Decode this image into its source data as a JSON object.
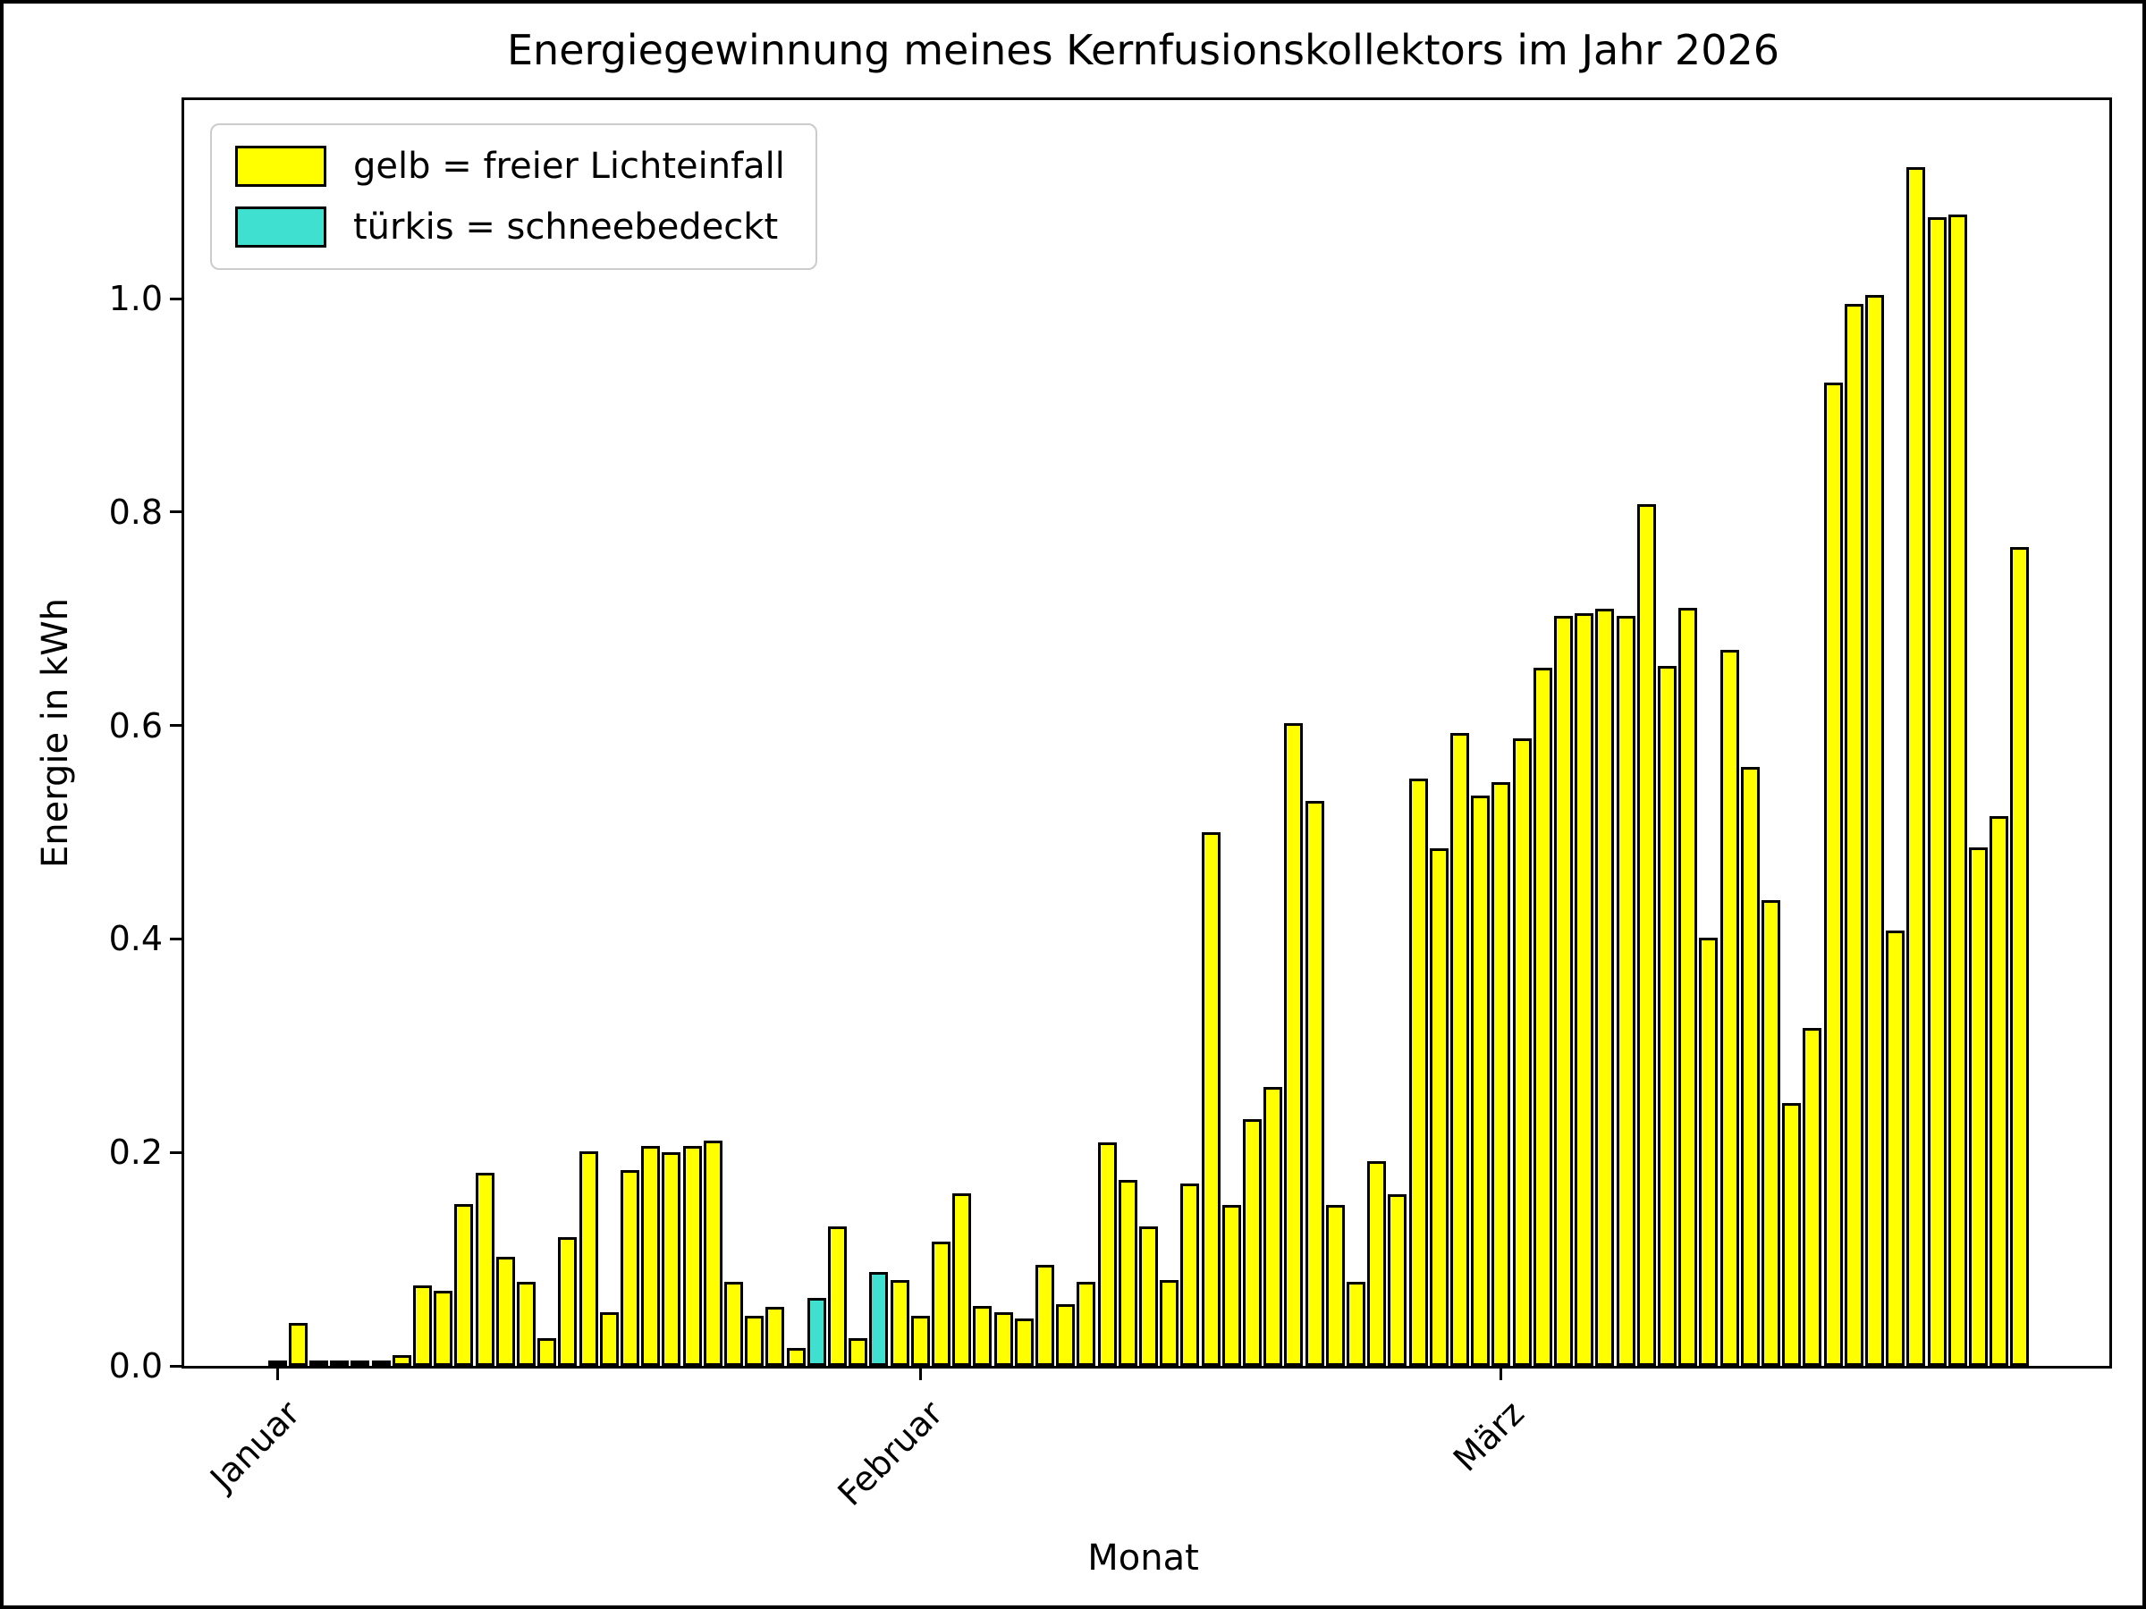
{
  "figure": {
    "title": "Energiegewinnung meines Kernfusionskollektors im Jahr 2026"
  },
  "chart_data": {
    "type": "bar",
    "title": "Energiegewinnung meines Kernfusionskollektors im Jahr 2026",
    "xlabel": "Monat",
    "ylabel": "Energie in kWh",
    "ylim": [
      0,
      1.186
    ],
    "grid": false,
    "legend_position": "upper left",
    "legend": [
      {
        "label": "gelb = freier Lichteinfall",
        "color": "#ffff00"
      },
      {
        "label": "türkis = schneebedeckt",
        "color": "#40e0d0"
      }
    ],
    "colors": {
      "free": "#ffff00",
      "snow": "#40e0d0",
      "edge": "#000000"
    },
    "yticks": [
      0.0,
      0.2,
      0.4,
      0.6,
      0.8,
      1.0
    ],
    "xticks": [
      {
        "label": "Januar",
        "day": 1
      },
      {
        "label": "Februar",
        "day": 32
      },
      {
        "label": "März",
        "day": 60
      }
    ],
    "x_description": "one bar per day, 1 Januar 2026 to 26 März 2026 (85 days)",
    "snow_days": [
      27,
      30
    ],
    "values": [
      0.004,
      0.04,
      0.002,
      0.001,
      0.003,
      0.005,
      0.01,
      0.075,
      0.07,
      0.152,
      0.181,
      0.102,
      0.079,
      0.026,
      0.121,
      0.201,
      0.05,
      0.183,
      0.206,
      0.2,
      0.206,
      0.211,
      0.079,
      0.047,
      0.055,
      0.017,
      0.064,
      0.131,
      0.026,
      0.088,
      0.08,
      0.047,
      0.116,
      0.162,
      0.056,
      0.05,
      0.044,
      0.095,
      0.058,
      0.079,
      0.209,
      0.174,
      0.131,
      0.08,
      0.171,
      0.5,
      0.151,
      0.231,
      0.261,
      0.602,
      0.529,
      0.151,
      0.079,
      0.192,
      0.161,
      0.55,
      0.485,
      0.593,
      0.534,
      0.547,
      0.588,
      0.654,
      0.703,
      0.705,
      0.709,
      0.703,
      0.807,
      0.656,
      0.71,
      0.401,
      0.671,
      0.561,
      0.436,
      0.246,
      0.317,
      0.921,
      0.995,
      1.003,
      0.408,
      1.123,
      1.076,
      1.079,
      0.486,
      0.515,
      0.767
    ]
  }
}
